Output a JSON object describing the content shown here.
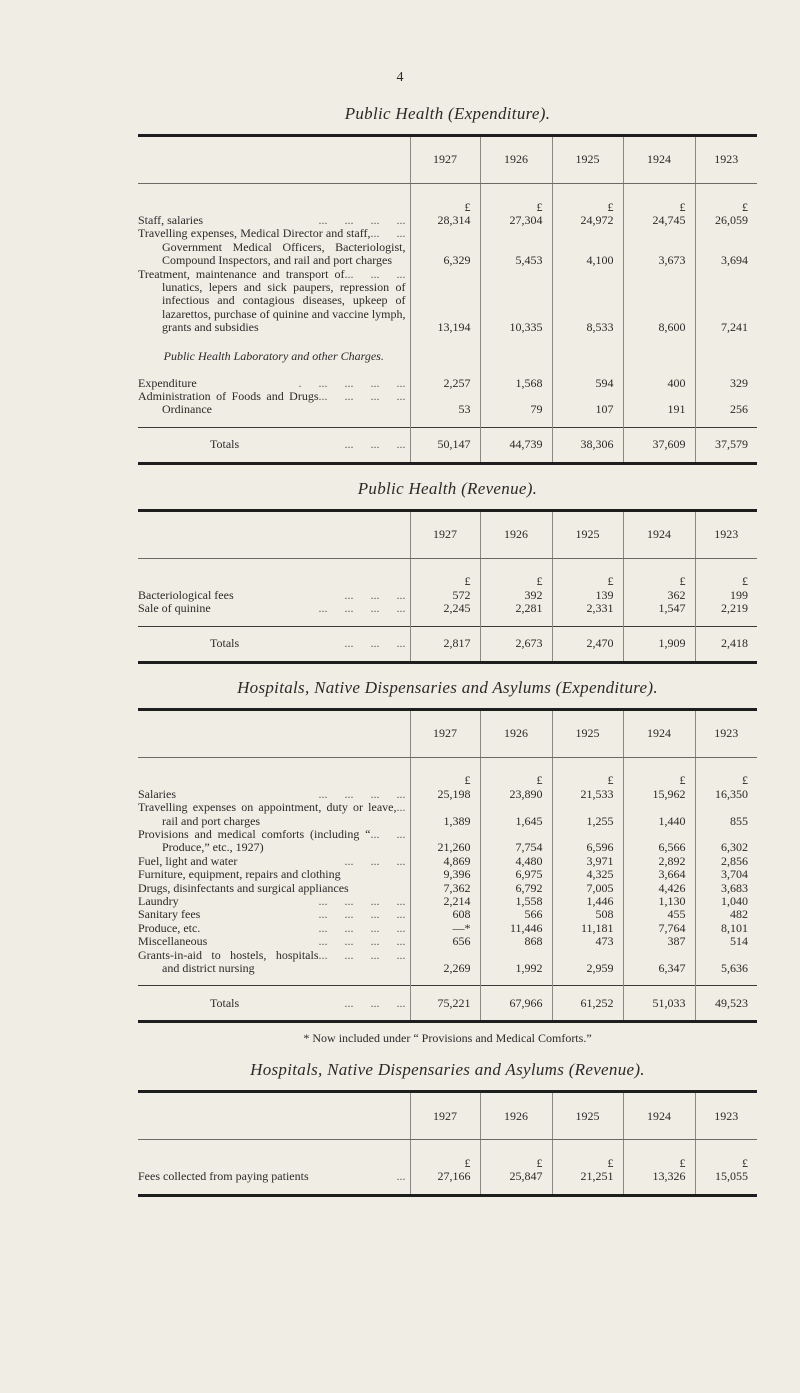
{
  "page_number": "4",
  "tables": [
    {
      "title": "Public Health (Expenditure).",
      "years": [
        "1927",
        "1926",
        "1925",
        "1924",
        "1923"
      ],
      "currency": "£",
      "rows": [
        {
          "label": "Staff, salaries",
          "leader": "... ... ... ...",
          "values": [
            "28,314",
            "27,304",
            "24,972",
            "24,745",
            "26,059"
          ]
        },
        {
          "label": "Travelling expenses, Medical Director and staff, Government Medical Officers, Bacteriologist, Compound Inspectors, and rail and port charges",
          "leader": "... ...",
          "values": [
            "6,329",
            "5,453",
            "4,100",
            "3,673",
            "3,694"
          ]
        },
        {
          "label": "Treatment, maintenance and transport of lunatics, lepers and sick paupers, repression of infectious and contagious diseases, upkeep of lazarettos, purchase of quinine and vaccine lymph, grants and subsidies",
          "leader": "... ... ...",
          "values": [
            "13,194",
            "10,335",
            "8,533",
            "8,600",
            "7,241"
          ]
        },
        {
          "subheading": "Public Health Laboratory and other Charges."
        },
        {
          "label": "Expenditure",
          "leader": ". ... ... ... ...",
          "values": [
            "2,257",
            "1,568",
            "594",
            "400",
            "329"
          ]
        },
        {
          "label": "Administration of Foods and Drugs Ordinance",
          "leader": "... ... ... ...",
          "values": [
            "53",
            "79",
            "107",
            "191",
            "256"
          ]
        }
      ],
      "totals": {
        "label": "Totals",
        "leader": "... ... ...",
        "values": [
          "50,147",
          "44,739",
          "38,306",
          "37,609",
          "37,579"
        ]
      }
    },
    {
      "title": "Public Health (Revenue).",
      "years": [
        "1927",
        "1926",
        "1925",
        "1924",
        "1923"
      ],
      "currency": "£",
      "rows": [
        {
          "label": "Bacteriological fees",
          "leader": "... ... ...",
          "values": [
            "572",
            "392",
            "139",
            "362",
            "199"
          ]
        },
        {
          "label": "Sale of quinine",
          "leader": "... ... ... ...",
          "values": [
            "2,245",
            "2,281",
            "2,331",
            "1,547",
            "2,219"
          ]
        }
      ],
      "totals": {
        "label": "Totals",
        "leader": "... ... ...",
        "values": [
          "2,817",
          "2,673",
          "2,470",
          "1,909",
          "2,418"
        ]
      }
    },
    {
      "title": "Hospitals, Native Dispensaries and Asylums (Expenditure).",
      "years": [
        "1927",
        "1926",
        "1925",
        "1924",
        "1923"
      ],
      "currency": "£",
      "rows": [
        {
          "label": "Salaries",
          "leader": "... ... ... ...",
          "values": [
            "25,198",
            "23,890",
            "21,533",
            "15,962",
            "16,350"
          ]
        },
        {
          "label": "Travelling expenses on appointment, duty or leave, rail and port charges",
          "leader": "...",
          "values": [
            "1,389",
            "1,645",
            "1,255",
            "1,440",
            "855"
          ]
        },
        {
          "label": "Provisions and medical comforts (including “ Produce,” etc., 1927)",
          "leader": "... ...",
          "values": [
            "21,260",
            "7,754",
            "6,596",
            "6,566",
            "6,302"
          ]
        },
        {
          "label": "Fuel, light and water",
          "leader": "... ... ...",
          "values": [
            "4,869",
            "4,480",
            "3,971",
            "2,892",
            "2,856"
          ]
        },
        {
          "label": "Furniture, equipment, repairs and clothing",
          "leader": "",
          "values": [
            "9,396",
            "6,975",
            "4,325",
            "3,664",
            "3,704"
          ]
        },
        {
          "label": "Drugs, disinfectants and surgical appliances",
          "leader": "",
          "values": [
            "7,362",
            "6,792",
            "7,005",
            "4,426",
            "3,683"
          ]
        },
        {
          "label": "Laundry",
          "leader": "... ... ... ...",
          "values": [
            "2,214",
            "1,558",
            "1,446",
            "1,130",
            "1,040"
          ]
        },
        {
          "label": "Sanitary fees",
          "leader": "... ... ... ...",
          "values": [
            "608",
            "566",
            "508",
            "455",
            "482"
          ]
        },
        {
          "label": "Produce, etc.",
          "leader": "... ... ... ...",
          "values": [
            "—*",
            "11,446",
            "11,181",
            "7,764",
            "8,101"
          ]
        },
        {
          "label": "Miscellaneous",
          "leader": "... ... ... ...",
          "values": [
            "656",
            "868",
            "473",
            "387",
            "514"
          ]
        },
        {
          "label": "Grants-in-aid to hostels, hospitals and district nursing",
          "leader": "... ... ... ...",
          "values": [
            "2,269",
            "1,992",
            "2,959",
            "6,347",
            "5,636"
          ]
        }
      ],
      "totals": {
        "label": "Totals",
        "leader": "... ... ...",
        "values": [
          "75,221",
          "67,966",
          "61,252",
          "51,033",
          "49,523"
        ]
      },
      "footnote": "* Now included under “ Provisions and Medical Comforts.”"
    },
    {
      "title": "Hospitals, Native Dispensaries and Asylums (Revenue).",
      "years": [
        "1927",
        "1926",
        "1925",
        "1924",
        "1923"
      ],
      "currency": "£",
      "rows": [
        {
          "label": "Fees collected from paying patients",
          "leader": "...",
          "values": [
            "27,166",
            "25,847",
            "21,251",
            "13,326",
            "15,055"
          ]
        }
      ]
    }
  ]
}
